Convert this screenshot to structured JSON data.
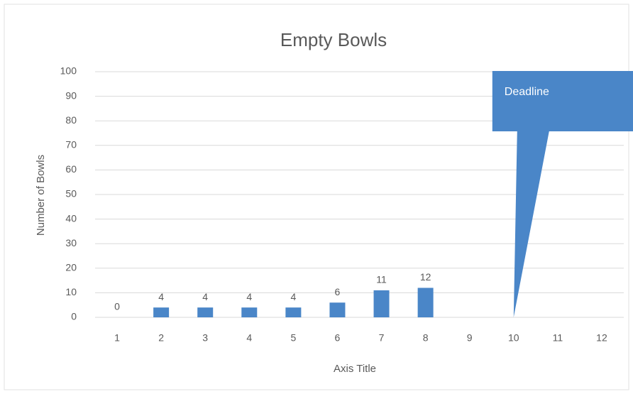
{
  "chart_data": {
    "type": "bar",
    "title": "Empty Bowls",
    "categories": [
      "1",
      "2",
      "3",
      "4",
      "5",
      "6",
      "7",
      "8",
      "9",
      "10",
      "11",
      "12"
    ],
    "values": [
      0,
      4,
      4,
      4,
      4,
      6,
      11,
      12,
      null,
      null,
      null,
      null
    ],
    "color": "#4a86c8",
    "ylim": [
      0,
      100
    ],
    "yticks": [
      0,
      10,
      20,
      30,
      40,
      50,
      60,
      70,
      80,
      90,
      100
    ],
    "grid": true,
    "y_axis_label": "Number of Bowls",
    "x_axis_label": "Axis Title",
    "annotations": [
      {
        "text": "Deadline",
        "x": "10"
      }
    ]
  }
}
